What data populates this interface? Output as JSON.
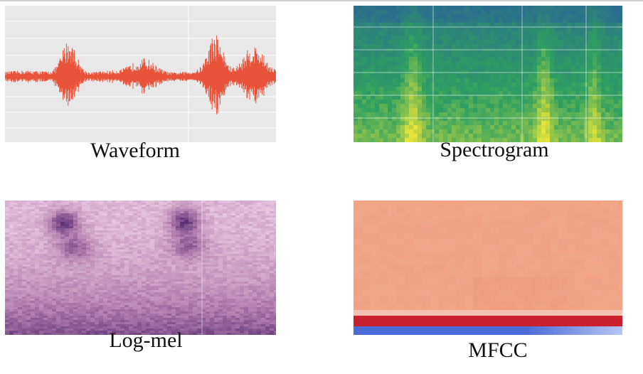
{
  "panels": [
    {
      "id": "waveform",
      "caption": "Waveform",
      "colors": {
        "signal": "#e8533a",
        "background": "#e8e8e8"
      }
    },
    {
      "id": "spectrogram",
      "caption": "Spectrogram",
      "colors": {
        "low": "#2a6e8e",
        "mid": "#2fa060",
        "high": "#e6e43a"
      }
    },
    {
      "id": "log-mel",
      "caption": "Log-mel",
      "colors": {
        "low": "#e8c6df",
        "mid": "#b47fb0",
        "high": "#5a2f74"
      }
    },
    {
      "id": "mfcc",
      "caption": "MFCC",
      "colors": {
        "base": "#f3a88a",
        "red_band": "#c8202e",
        "blue_band": "#4b6bd6"
      }
    }
  ]
}
